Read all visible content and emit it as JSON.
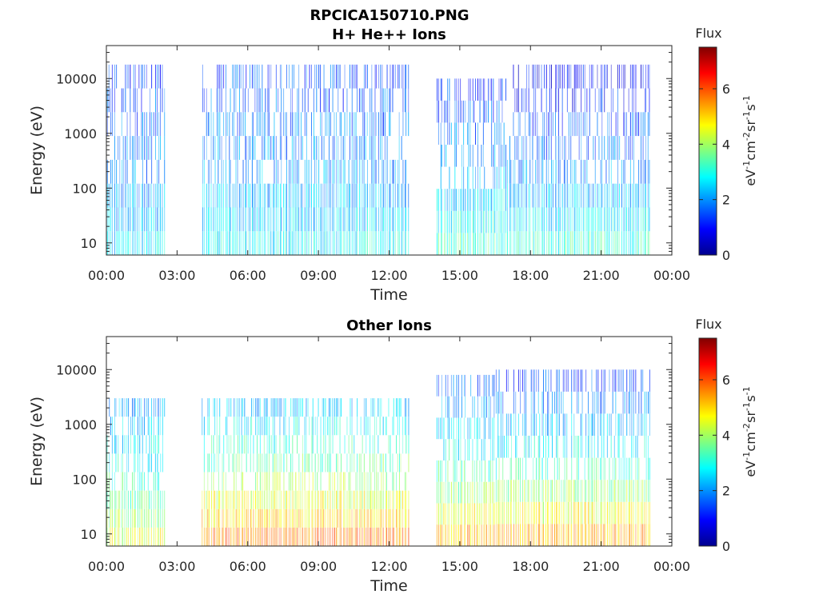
{
  "figure": {
    "title": "RPCICA150710.PNG",
    "colormap": [
      "#00008f",
      "#0000ff",
      "#0080ff",
      "#00ffff",
      "#80ff80",
      "#ffff00",
      "#ff8000",
      "#ff0000",
      "#800000"
    ]
  },
  "chart_data": [
    {
      "type": "heatmap",
      "title": "H+ He++ Ions",
      "xlabel": "Time",
      "ylabel": "Energy (eV)",
      "x_ticks": [
        "00:00",
        "03:00",
        "06:00",
        "09:00",
        "12:00",
        "15:00",
        "18:00",
        "21:00",
        "00:00"
      ],
      "x_range_hours": [
        0,
        24
      ],
      "y_scale": "log",
      "y_ticks": [
        "10",
        "100",
        "1000",
        "10000"
      ],
      "y_range": [
        6,
        40000
      ],
      "colorbar": {
        "label": "Flux",
        "unit_base": "eV",
        "unit_parts": [
          {
            "base": "eV",
            "exp": "-1"
          },
          {
            "base": "cm",
            "exp": "-2"
          },
          {
            "base": "sr",
            "exp": "-1"
          },
          {
            "base": "s",
            "exp": "-1"
          }
        ],
        "ticks": [
          "0",
          "2",
          "4",
          "6"
        ],
        "range": [
          0,
          7.5
        ]
      },
      "data_intervals_hours": [
        [
          0,
          2.5
        ],
        [
          4.05,
          12.85
        ],
        [
          14.0,
          23.1
        ]
      ],
      "bands": [
        {
          "t": [
            0.0,
            2.5
          ],
          "e": [
            6,
            18000
          ],
          "flux_low_e": 2.8,
          "flux_high_e": 1.3
        },
        {
          "t": [
            4.05,
            12.85
          ],
          "e": [
            6,
            18000
          ],
          "flux_low_e": 3.0,
          "flux_high_e": 1.4
        },
        {
          "t": [
            14.0,
            17.0
          ],
          "e": [
            6,
            10000
          ],
          "flux_low_e": 3.6,
          "flux_high_e": 1.2
        },
        {
          "t": [
            17.0,
            23.1
          ],
          "e": [
            6,
            18000
          ],
          "flux_low_e": 3.5,
          "flux_high_e": 0.8
        }
      ]
    },
    {
      "type": "heatmap",
      "title": "Other Ions",
      "xlabel": "Time",
      "ylabel": "Energy (eV)",
      "x_ticks": [
        "00:00",
        "03:00",
        "06:00",
        "09:00",
        "12:00",
        "15:00",
        "18:00",
        "21:00",
        "00:00"
      ],
      "x_range_hours": [
        0,
        24
      ],
      "y_scale": "log",
      "y_ticks": [
        "10",
        "100",
        "1000",
        "10000"
      ],
      "y_range": [
        6,
        40000
      ],
      "colorbar": {
        "label": "Flux",
        "unit_base": "eV",
        "unit_parts": [
          {
            "base": "eV",
            "exp": "-1"
          },
          {
            "base": "cm",
            "exp": "-2"
          },
          {
            "base": "sr",
            "exp": "-1"
          },
          {
            "base": "s",
            "exp": "-1"
          }
        ],
        "ticks": [
          "0",
          "2",
          "4",
          "6"
        ],
        "range": [
          0,
          7.5
        ]
      },
      "data_intervals_hours": [
        [
          0,
          2.5
        ],
        [
          4.05,
          12.85
        ],
        [
          14.0,
          23.1
        ]
      ],
      "bands": [
        {
          "t": [
            0.0,
            2.5
          ],
          "e": [
            6,
            3000
          ],
          "flux_low_e": 4.8,
          "flux_high_e": 2.0
        },
        {
          "t": [
            4.05,
            12.85
          ],
          "e": [
            6,
            3000
          ],
          "flux_low_e": 6.2,
          "flux_high_e": 2.2
        },
        {
          "t": [
            14.0,
            16.5
          ],
          "e": [
            6,
            8000
          ],
          "flux_low_e": 5.8,
          "flux_high_e": 1.5
        },
        {
          "t": [
            16.5,
            23.1
          ],
          "e": [
            6,
            10000
          ],
          "flux_low_e": 6.0,
          "flux_high_e": 1.2
        }
      ]
    }
  ]
}
